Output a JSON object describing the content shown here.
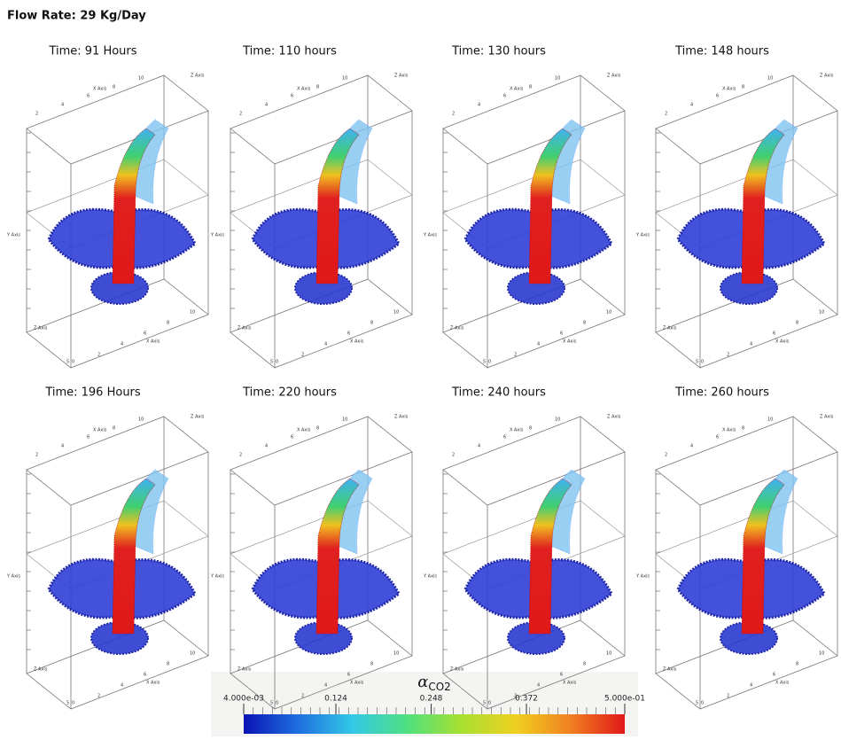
{
  "title": "Flow Rate: 29 Kg/Day",
  "panels": [
    {
      "title": "Time: 91 Hours"
    },
    {
      "title": "Time: 110 hours"
    },
    {
      "title": "Time: 130 hours"
    },
    {
      "title": "Time: 148 hours"
    },
    {
      "title": "Time: 196 Hours"
    },
    {
      "title": "Time: 220 hours"
    },
    {
      "title": "Time: 240 hours"
    },
    {
      "title": "Time: 260 hours"
    }
  ],
  "axes": {
    "x_label": "X Axis",
    "y_label": "Y Axis",
    "z_label": "Z Axis",
    "xy_ticks": [
      2,
      4,
      6,
      8,
      10
    ],
    "z_ticks": [
      5,
      0
    ]
  },
  "colorbar": {
    "symbol": "α",
    "subscript": "CO2",
    "range": [
      0.004,
      0.5
    ],
    "ticks": [
      {
        "value": 0.004,
        "label": "4.000e-03"
      },
      0.124,
      0.248,
      0.372,
      {
        "value": 0.5,
        "label": "5.000e-01"
      }
    ],
    "colors": [
      "#0a14b4",
      "#1f6fe0",
      "#33c8e8",
      "#4fe080",
      "#a8e030",
      "#f0d020",
      "#f08020",
      "#e01818"
    ]
  }
}
